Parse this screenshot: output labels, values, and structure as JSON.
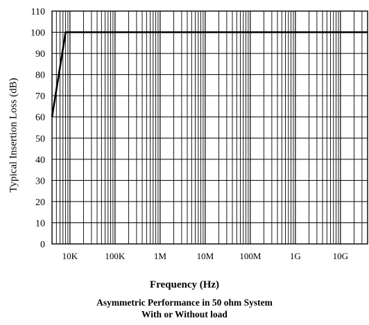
{
  "chart_data": {
    "type": "line",
    "xlabel": "Frequency (Hz)",
    "ylabel": "Typical Insertion Loss (dB)",
    "caption_lines": [
      "Asymmetric Performance in 50 ohm System",
      "With or Without load"
    ],
    "x_scale": "log",
    "x_ticks": [
      {
        "value": 10000,
        "label": "10K"
      },
      {
        "value": 100000,
        "label": "100K"
      },
      {
        "value": 1000000,
        "label": "1M"
      },
      {
        "value": 10000000,
        "label": "10M"
      },
      {
        "value": 100000000,
        "label": "100M"
      },
      {
        "value": 1000000000,
        "label": "1G"
      },
      {
        "value": 10000000000,
        "label": "10G"
      }
    ],
    "x_range": [
      4000,
      40000000000
    ],
    "y_ticks": [
      0,
      10,
      20,
      30,
      40,
      50,
      60,
      70,
      80,
      90,
      100,
      110
    ],
    "ylim": [
      0,
      110
    ],
    "grid": true,
    "series": [
      {
        "x": [
          4000,
          8000,
          40000000000
        ],
        "y": [
          60,
          100,
          100
        ]
      }
    ],
    "line_color": "#000000",
    "grid_color": "#000000"
  }
}
